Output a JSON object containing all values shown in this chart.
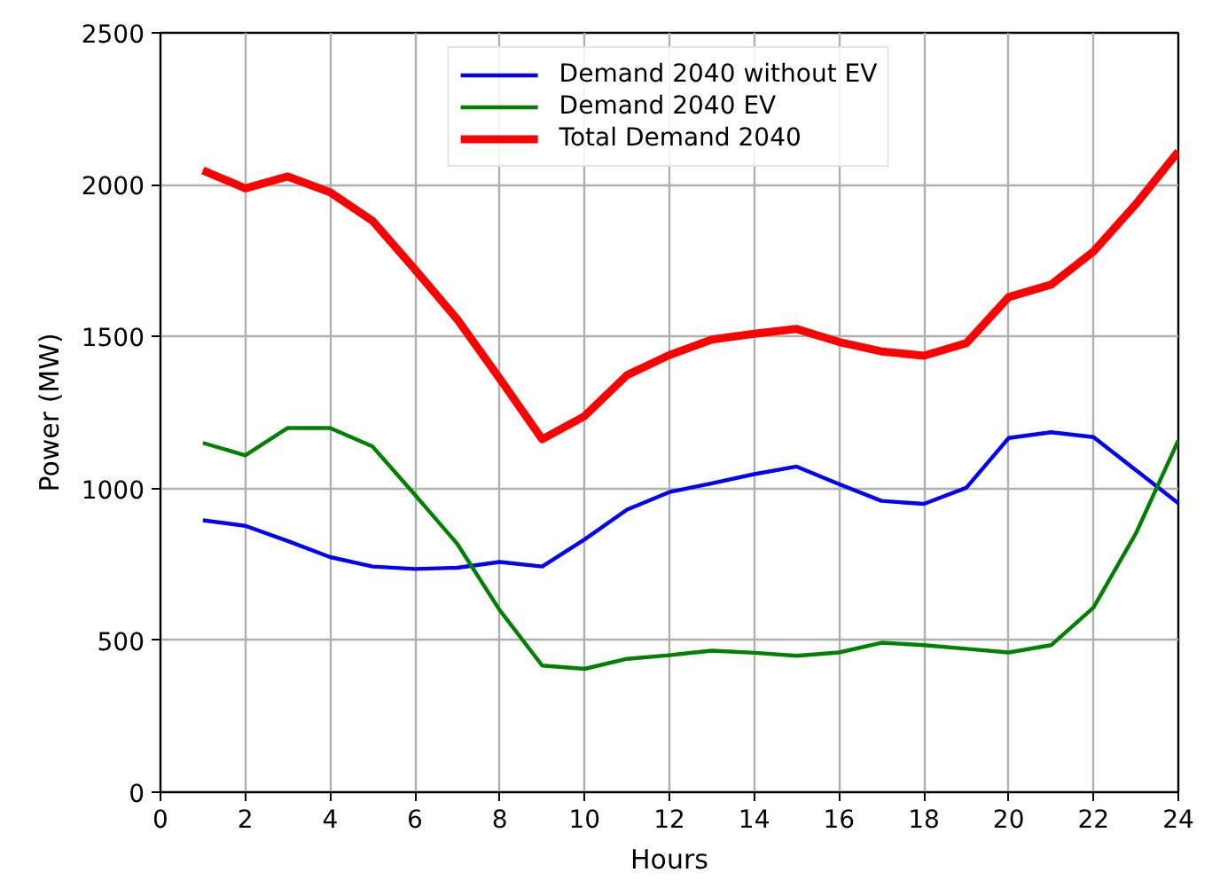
{
  "chart_data": {
    "type": "line",
    "xlabel": "Hours",
    "ylabel": "Power (MW)",
    "x": [
      1,
      2,
      3,
      4,
      5,
      6,
      7,
      8,
      9,
      10,
      11,
      12,
      13,
      14,
      15,
      16,
      17,
      18,
      19,
      20,
      21,
      22,
      23,
      24
    ],
    "xlim": [
      0,
      24
    ],
    "xticks": [
      0,
      2,
      4,
      6,
      8,
      10,
      12,
      14,
      16,
      18,
      20,
      22,
      24
    ],
    "ylim": [
      0,
      2500
    ],
    "yticks": [
      0,
      500,
      1000,
      1500,
      2000,
      2500
    ],
    "grid": true,
    "legend": "top",
    "marker": "none",
    "line_style": "solid",
    "series": [
      {
        "name": "Demand 2040 without EV",
        "color": "#0000ff",
        "values": [
          895,
          877,
          827,
          774,
          743,
          735,
          739,
          758,
          743,
          832,
          930,
          988,
          1017,
          1047,
          1072,
          1014,
          959,
          949,
          1002,
          1166,
          1185,
          1169,
          1060,
          951
        ]
      },
      {
        "name": "Demand 2040 EV",
        "color": "#008000",
        "values": [
          1150,
          1109,
          1199,
          1199,
          1138,
          979,
          817,
          599,
          417,
          406,
          439,
          451,
          466,
          459,
          449,
          460,
          492,
          484,
          472,
          460,
          484,
          608,
          852,
          1158
        ]
      },
      {
        "name": "Total Demand 2040",
        "color": "#ff0000",
        "values": [
          2047,
          1988,
          2027,
          1975,
          1881,
          1721,
          1556,
          1361,
          1162,
          1238,
          1373,
          1439,
          1490,
          1509,
          1525,
          1482,
          1451,
          1437,
          1478,
          1630,
          1671,
          1780,
          1936,
          2109
        ]
      }
    ]
  }
}
